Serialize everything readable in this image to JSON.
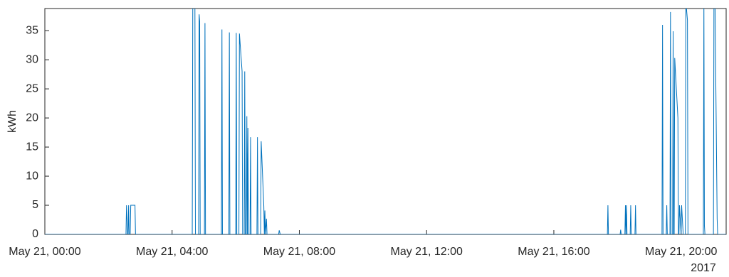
{
  "chart_data": {
    "type": "line",
    "y_label": "kWh",
    "x_secondary_label": "2017",
    "xlim": [
      "2017-05-21 00:00",
      "2017-05-21 21:25"
    ],
    "xticks": [
      {
        "value": "2017-05-21 00:00",
        "label": "May 21, 00:00"
      },
      {
        "value": "2017-05-21 04:00",
        "label": "May 21, 04:00"
      },
      {
        "value": "2017-05-21 08:00",
        "label": "May 21, 08:00"
      },
      {
        "value": "2017-05-21 12:00",
        "label": "May 21, 12:00"
      },
      {
        "value": "2017-05-21 16:00",
        "label": "May 21, 16:00"
      },
      {
        "value": "2017-05-21 20:00",
        "label": "May 21, 20:00"
      }
    ],
    "ylim": [
      0,
      38.8
    ],
    "yticks": [
      0,
      5,
      10,
      15,
      20,
      25,
      30,
      35
    ],
    "x": [
      "2017-05-21 00:00",
      "2017-05-21 02:33",
      "2017-05-21 02:34",
      "2017-05-21 02:36",
      "2017-05-21 02:37",
      "2017-05-21 02:38",
      "2017-05-21 02:39",
      "2017-05-21 02:41",
      "2017-05-21 02:42",
      "2017-05-21 02:50",
      "2017-05-21 02:51",
      "2017-05-21 04:38",
      "2017-05-21 04:39",
      "2017-05-21 04:43",
      "2017-05-21 04:44",
      "2017-05-21 04:50",
      "2017-05-21 04:51",
      "2017-05-21 04:52",
      "2017-05-21 04:53",
      "2017-05-21 05:01",
      "2017-05-21 05:02",
      "2017-05-21 05:03",
      "2017-05-21 05:33",
      "2017-05-21 05:34",
      "2017-05-21 05:35",
      "2017-05-21 05:47",
      "2017-05-21 05:48",
      "2017-05-21 05:49",
      "2017-05-21 06:00",
      "2017-05-21 06:01",
      "2017-05-21 06:02",
      "2017-05-21 06:06",
      "2017-05-21 06:07",
      "2017-05-21 06:12",
      "2017-05-21 06:13",
      "2017-05-21 06:16",
      "2017-05-21 06:17",
      "2017-05-21 06:18",
      "2017-05-21 06:20",
      "2017-05-21 06:21",
      "2017-05-21 06:22",
      "2017-05-21 06:23",
      "2017-05-21 06:24",
      "2017-05-21 06:27",
      "2017-05-21 06:28",
      "2017-05-21 06:29",
      "2017-05-21 06:40",
      "2017-05-21 06:41",
      "2017-05-21 06:42",
      "2017-05-21 06:47",
      "2017-05-21 06:48",
      "2017-05-21 06:53",
      "2017-05-21 06:54",
      "2017-05-21 06:55",
      "2017-05-21 06:56",
      "2017-05-21 06:58",
      "2017-05-21 06:59",
      "2017-05-21 07:21",
      "2017-05-21 07:22",
      "2017-05-21 07:24",
      "2017-05-21 17:41",
      "2017-05-21 17:42",
      "2017-05-21 17:43",
      "2017-05-21 18:05",
      "2017-05-21 18:06",
      "2017-05-21 18:07",
      "2017-05-21 18:14",
      "2017-05-21 18:15",
      "2017-05-21 18:16",
      "2017-05-21 18:17",
      "2017-05-21 18:18",
      "2017-05-21 18:24",
      "2017-05-21 18:25",
      "2017-05-21 18:26",
      "2017-05-21 18:33",
      "2017-05-21 18:34",
      "2017-05-21 18:35",
      "2017-05-21 19:24",
      "2017-05-21 19:25",
      "2017-05-21 19:26",
      "2017-05-21 19:32",
      "2017-05-21 19:33",
      "2017-05-21 19:34",
      "2017-05-21 19:39",
      "2017-05-21 19:40",
      "2017-05-21 19:41",
      "2017-05-21 19:44",
      "2017-05-21 19:45",
      "2017-05-21 19:46",
      "2017-05-21 19:47",
      "2017-05-21 19:48",
      "2017-05-21 19:54",
      "2017-05-21 19:55",
      "2017-05-21 19:56",
      "2017-05-21 19:57",
      "2017-05-21 20:00",
      "2017-05-21 20:01",
      "2017-05-21 20:04",
      "2017-05-21 20:08",
      "2017-05-21 20:09",
      "2017-05-21 20:12",
      "2017-05-21 20:13",
      "2017-05-21 20:42",
      "2017-05-21 20:43",
      "2017-05-21 20:44",
      "2017-05-21 20:45",
      "2017-05-21 21:01",
      "2017-05-21 21:02",
      "2017-05-21 21:04",
      "2017-05-21 21:08",
      "2017-05-21 21:09",
      "2017-05-21 21:25"
    ],
    "series": [
      {
        "color": "#0072bd",
        "values": [
          0,
          0,
          5,
          0,
          0,
          5,
          0,
          0,
          5,
          5,
          0,
          0,
          40,
          40,
          0,
          0,
          37.8,
          36.6,
          0,
          0,
          36.3,
          0,
          0,
          35.2,
          0,
          0,
          34.7,
          0,
          0,
          34.6,
          0,
          0,
          34.5,
          28,
          0,
          0,
          28,
          0,
          0,
          20.3,
          0,
          18.3,
          0,
          0,
          16.7,
          0,
          0,
          16.7,
          0,
          0,
          16,
          4.8,
          0,
          4.1,
          0,
          2.7,
          0,
          0,
          0.7,
          0,
          0,
          5,
          0,
          0,
          0.8,
          0,
          0,
          5,
          0,
          5,
          0,
          0,
          5,
          0,
          0,
          5,
          0,
          0,
          36,
          0,
          0,
          5,
          0,
          0,
          38.2,
          0,
          0,
          34.9,
          0,
          0,
          30.3,
          20,
          0,
          0,
          5,
          0,
          5,
          0,
          0,
          40,
          36.8,
          0,
          0,
          40,
          1.5,
          0,
          0,
          40,
          40,
          2.7,
          0,
          0
        ]
      }
    ]
  }
}
